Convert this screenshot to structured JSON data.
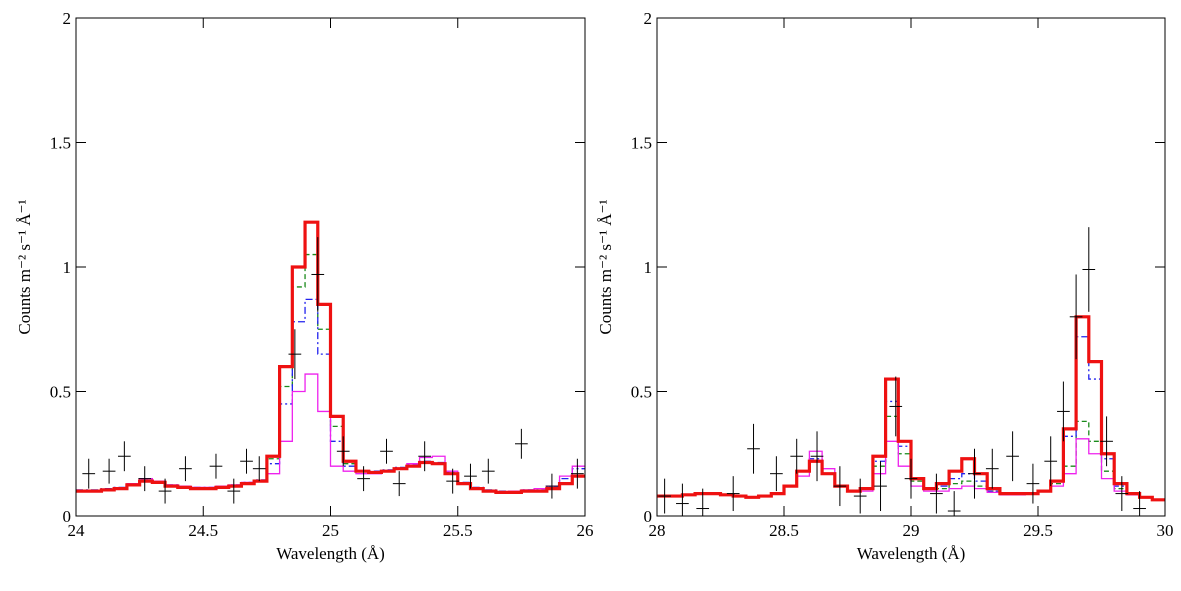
{
  "chart_data": [
    {
      "type": "step",
      "xlabel": "Wavelength (Å)",
      "ylabel": "Counts m⁻² s⁻¹ Å⁻¹",
      "xlim": [
        24,
        26
      ],
      "xticks": [
        24,
        24.5,
        25,
        25.5,
        26
      ],
      "ylim": [
        0,
        2
      ],
      "yticks": [
        0,
        0.5,
        1,
        1.5,
        2
      ],
      "x": [
        24.025,
        24.075,
        24.125,
        24.175,
        24.225,
        24.275,
        24.325,
        24.375,
        24.425,
        24.475,
        24.525,
        24.575,
        24.625,
        24.675,
        24.725,
        24.775,
        24.825,
        24.875,
        24.925,
        24.975,
        25.025,
        25.075,
        25.125,
        25.175,
        25.225,
        25.275,
        25.325,
        25.375,
        25.425,
        25.475,
        25.525,
        25.575,
        25.625,
        25.675,
        25.725,
        25.775,
        25.825,
        25.875,
        25.925,
        25.975
      ],
      "series": [
        {
          "color": "#1a8a1a",
          "style": "dashed",
          "values": [
            0.1,
            0.1,
            0.105,
            0.11,
            0.125,
            0.14,
            0.135,
            0.12,
            0.115,
            0.11,
            0.11,
            0.115,
            0.12,
            0.13,
            0.14,
            0.23,
            0.52,
            0.92,
            1.05,
            0.75,
            0.36,
            0.21,
            0.18,
            0.175,
            0.18,
            0.19,
            0.2,
            0.215,
            0.21,
            0.17,
            0.13,
            0.11,
            0.1,
            0.095,
            0.095,
            0.1,
            0.1,
            0.11,
            0.13,
            0.16
          ]
        },
        {
          "color": "#2222ee",
          "style": "dashdot",
          "values": [
            0.105,
            0.105,
            0.11,
            0.115,
            0.13,
            0.145,
            0.14,
            0.125,
            0.12,
            0.115,
            0.115,
            0.12,
            0.125,
            0.135,
            0.145,
            0.21,
            0.45,
            0.78,
            0.87,
            0.65,
            0.3,
            0.2,
            0.18,
            0.18,
            0.185,
            0.195,
            0.205,
            0.22,
            0.215,
            0.175,
            0.135,
            0.115,
            0.105,
            0.1,
            0.1,
            0.105,
            0.11,
            0.12,
            0.15,
            0.19
          ]
        },
        {
          "color": "#ee22ee",
          "style": "solid",
          "values": [
            0.1,
            0.1,
            0.105,
            0.11,
            0.13,
            0.15,
            0.14,
            0.125,
            0.12,
            0.115,
            0.115,
            0.12,
            0.125,
            0.135,
            0.14,
            0.17,
            0.3,
            0.5,
            0.57,
            0.42,
            0.2,
            0.18,
            0.17,
            0.17,
            0.18,
            0.19,
            0.21,
            0.235,
            0.24,
            0.18,
            0.13,
            0.11,
            0.1,
            0.095,
            0.1,
            0.105,
            0.11,
            0.12,
            0.16,
            0.2
          ]
        },
        {
          "color": "#ee1111",
          "style": "thick",
          "values": [
            0.1,
            0.1,
            0.105,
            0.11,
            0.125,
            0.14,
            0.135,
            0.12,
            0.115,
            0.11,
            0.11,
            0.115,
            0.12,
            0.13,
            0.14,
            0.24,
            0.6,
            1.0,
            1.18,
            0.85,
            0.4,
            0.22,
            0.18,
            0.175,
            0.18,
            0.19,
            0.2,
            0.215,
            0.21,
            0.17,
            0.13,
            0.11,
            0.1,
            0.095,
            0.095,
            0.1,
            0.1,
            0.11,
            0.13,
            0.16
          ]
        }
      ],
      "points": {
        "color": "#000000",
        "xerr": 0.025,
        "x": [
          24.05,
          24.13,
          24.19,
          24.27,
          24.35,
          24.43,
          24.55,
          24.62,
          24.67,
          24.72,
          24.86,
          24.95,
          25.05,
          25.13,
          25.22,
          25.27,
          25.37,
          25.48,
          25.55,
          25.62,
          25.75,
          25.87,
          25.97
        ],
        "y": [
          0.17,
          0.18,
          0.24,
          0.15,
          0.1,
          0.19,
          0.2,
          0.1,
          0.22,
          0.19,
          0.65,
          0.97,
          0.26,
          0.15,
          0.26,
          0.13,
          0.24,
          0.14,
          0.16,
          0.18,
          0.29,
          0.12,
          0.17
        ],
        "yerr": [
          0.06,
          0.05,
          0.06,
          0.05,
          0.05,
          0.05,
          0.05,
          0.05,
          0.05,
          0.05,
          0.1,
          0.15,
          0.06,
          0.05,
          0.05,
          0.05,
          0.06,
          0.05,
          0.05,
          0.05,
          0.06,
          0.05,
          0.06
        ]
      }
    },
    {
      "type": "step",
      "xlabel": "Wavelength (Å)",
      "ylabel": "Counts m⁻² s⁻¹ Å⁻¹",
      "xlim": [
        28,
        30
      ],
      "xticks": [
        28,
        28.5,
        29,
        29.5,
        30
      ],
      "ylim": [
        0,
        2
      ],
      "yticks": [
        0,
        0.5,
        1,
        1.5,
        2
      ],
      "x": [
        28.025,
        28.075,
        28.125,
        28.175,
        28.225,
        28.275,
        28.325,
        28.375,
        28.425,
        28.475,
        28.525,
        28.575,
        28.625,
        28.675,
        28.725,
        28.775,
        28.825,
        28.875,
        28.925,
        28.975,
        29.025,
        29.075,
        29.125,
        29.175,
        29.225,
        29.275,
        29.325,
        29.375,
        29.425,
        29.475,
        29.525,
        29.575,
        29.625,
        29.675,
        29.725,
        29.775,
        29.825,
        29.875,
        29.925,
        29.975
      ],
      "series": [
        {
          "color": "#1a8a1a",
          "style": "dashed",
          "values": [
            0.08,
            0.08,
            0.085,
            0.09,
            0.09,
            0.085,
            0.08,
            0.075,
            0.08,
            0.09,
            0.12,
            0.18,
            0.22,
            0.17,
            0.12,
            0.1,
            0.11,
            0.2,
            0.4,
            0.25,
            0.14,
            0.11,
            0.11,
            0.13,
            0.14,
            0.12,
            0.1,
            0.09,
            0.09,
            0.09,
            0.1,
            0.13,
            0.2,
            0.38,
            0.3,
            0.18,
            0.11,
            0.085,
            0.075,
            0.065
          ]
        },
        {
          "color": "#2222ee",
          "style": "dashdot",
          "values": [
            0.08,
            0.08,
            0.085,
            0.09,
            0.09,
            0.085,
            0.08,
            0.075,
            0.08,
            0.09,
            0.12,
            0.18,
            0.23,
            0.17,
            0.12,
            0.1,
            0.11,
            0.22,
            0.46,
            0.28,
            0.15,
            0.11,
            0.12,
            0.15,
            0.17,
            0.14,
            0.1,
            0.09,
            0.09,
            0.09,
            0.1,
            0.14,
            0.32,
            0.72,
            0.55,
            0.23,
            0.12,
            0.09,
            0.075,
            0.065
          ]
        },
        {
          "color": "#ee22ee",
          "style": "solid",
          "values": [
            0.08,
            0.08,
            0.085,
            0.09,
            0.09,
            0.085,
            0.08,
            0.075,
            0.08,
            0.09,
            0.12,
            0.16,
            0.26,
            0.19,
            0.12,
            0.1,
            0.1,
            0.17,
            0.3,
            0.2,
            0.12,
            0.1,
            0.1,
            0.11,
            0.12,
            0.11,
            0.095,
            0.085,
            0.085,
            0.09,
            0.1,
            0.12,
            0.17,
            0.31,
            0.25,
            0.15,
            0.1,
            0.085,
            0.075,
            0.065
          ]
        },
        {
          "color": "#ee1111",
          "style": "thick",
          "values": [
            0.08,
            0.08,
            0.085,
            0.09,
            0.09,
            0.085,
            0.08,
            0.075,
            0.08,
            0.09,
            0.12,
            0.18,
            0.22,
            0.17,
            0.12,
            0.1,
            0.11,
            0.24,
            0.55,
            0.3,
            0.15,
            0.11,
            0.13,
            0.18,
            0.23,
            0.17,
            0.11,
            0.09,
            0.09,
            0.09,
            0.1,
            0.14,
            0.35,
            0.8,
            0.62,
            0.25,
            0.13,
            0.09,
            0.075,
            0.065
          ]
        }
      ],
      "points": {
        "color": "#000000",
        "xerr": 0.025,
        "x": [
          28.03,
          28.1,
          28.18,
          28.3,
          28.38,
          28.47,
          28.55,
          28.63,
          28.72,
          28.8,
          28.88,
          28.94,
          29.0,
          29.1,
          29.17,
          29.25,
          29.32,
          29.4,
          29.48,
          29.55,
          29.6,
          29.65,
          29.7,
          29.77,
          29.83,
          29.9
        ],
        "y": [
          0.08,
          0.05,
          0.03,
          0.09,
          0.27,
          0.17,
          0.24,
          0.24,
          0.12,
          0.08,
          0.12,
          0.44,
          0.15,
          0.09,
          0.02,
          0.17,
          0.19,
          0.24,
          0.13,
          0.22,
          0.42,
          0.8,
          0.99,
          0.3,
          0.09,
          0.03
        ],
        "yerr": [
          0.07,
          0.08,
          0.08,
          0.07,
          0.1,
          0.07,
          0.07,
          0.1,
          0.08,
          0.07,
          0.1,
          0.12,
          0.08,
          0.08,
          0.08,
          0.1,
          0.08,
          0.1,
          0.08,
          0.1,
          0.12,
          0.17,
          0.17,
          0.1,
          0.07,
          0.07
        ]
      }
    }
  ]
}
